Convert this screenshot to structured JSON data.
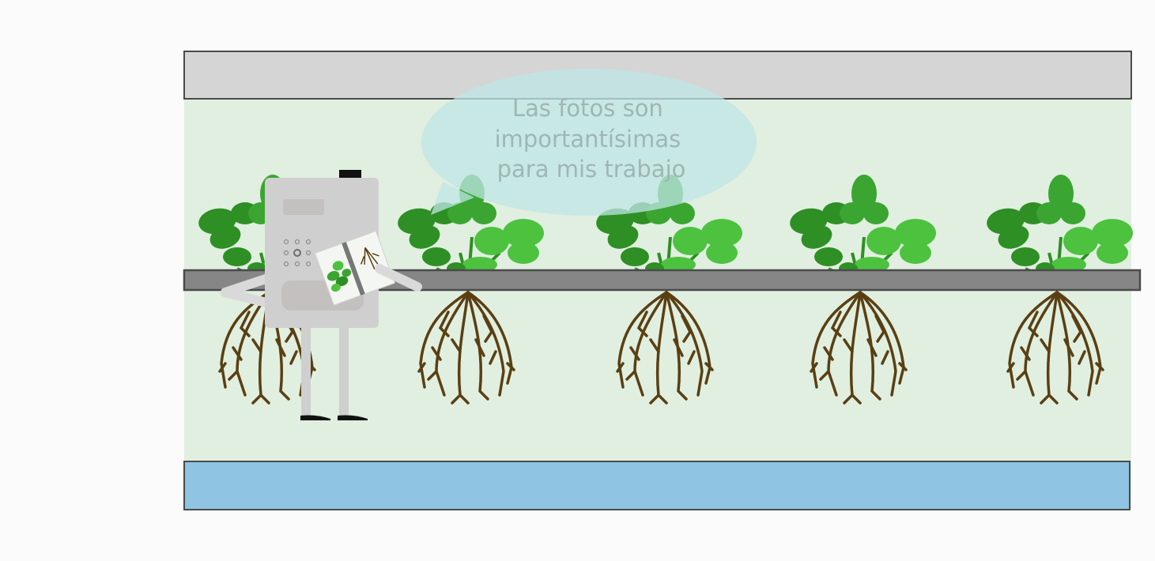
{
  "speech_bubble": {
    "lines": [
      "Las fotos son",
      "importantísimas",
      "para mis trabajo"
    ]
  },
  "plants": {
    "count": 5
  },
  "colors": {
    "background": "#fbfbfb",
    "panel_fill": "#e0efdf",
    "top_bar": "#d5d5d5",
    "water": "#8fc5e3",
    "rail": "#858685",
    "border": "#4a4a4a",
    "leaf_dark": "#2e8f24",
    "leaf_mid": "#3aa531",
    "leaf_light": "#4cc23f",
    "root": "#5a3f13",
    "robot_body": "#cfcfcf",
    "bubble": "#bfe5e5"
  },
  "icons": [
    "robot",
    "plant",
    "photo",
    "speech-bubble"
  ]
}
